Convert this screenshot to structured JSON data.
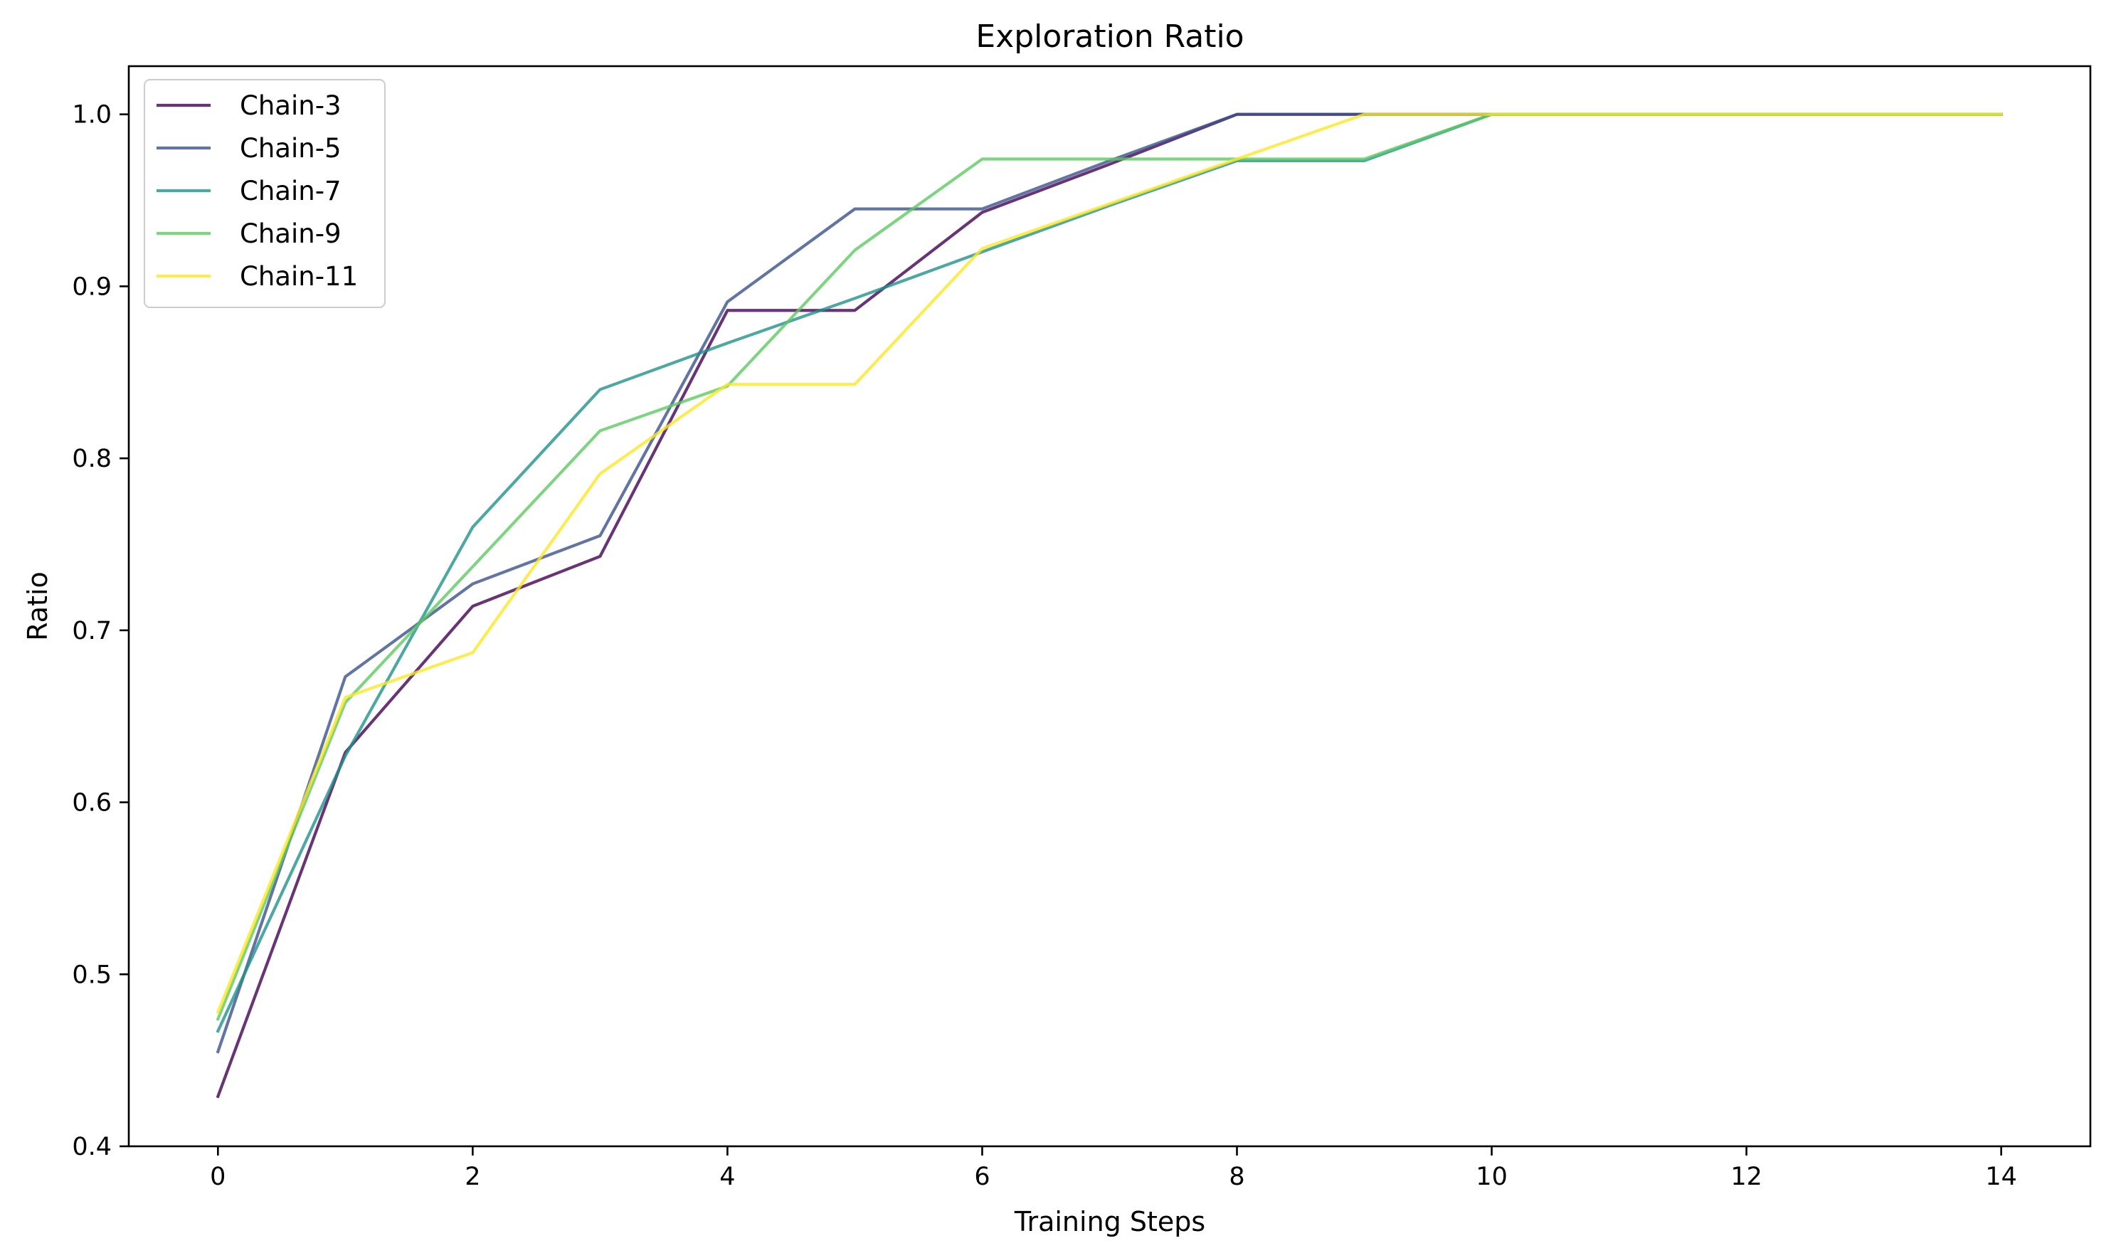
{
  "chart_data": {
    "type": "line",
    "title": "Exploration Ratio",
    "xlabel": "Training Steps",
    "ylabel": "Ratio",
    "xlim": [
      -0.7,
      14.7
    ],
    "ylim": [
      0.4,
      1.028
    ],
    "xticks": [
      0,
      2,
      4,
      6,
      8,
      10,
      12,
      14
    ],
    "xtick_labels": [
      "0",
      "2",
      "4",
      "6",
      "8",
      "10",
      "12",
      "14"
    ],
    "yticks": [
      0.4,
      0.5,
      0.6,
      0.7,
      0.8,
      0.9,
      1.0
    ],
    "ytick_labels": [
      "0.4",
      "0.5",
      "0.6",
      "0.7",
      "0.8",
      "0.9",
      "1.0"
    ],
    "grid": false,
    "legend_position": "top-left",
    "x": [
      0,
      1,
      2,
      3,
      4,
      5,
      6,
      7,
      8,
      9,
      10,
      11,
      12,
      13,
      14
    ],
    "series": [
      {
        "name": "Chain-3",
        "color": "#440154",
        "values": [
          0.429,
          0.629,
          0.714,
          0.743,
          0.886,
          0.886,
          0.943,
          0.971,
          1.0,
          1.0,
          1.0,
          1.0,
          1.0,
          1.0,
          1.0
        ]
      },
      {
        "name": "Chain-5",
        "color": "#3b528b",
        "values": [
          0.455,
          0.673,
          0.727,
          0.755,
          0.891,
          0.945,
          0.945,
          0.973,
          1.0,
          1.0,
          1.0,
          1.0,
          1.0,
          1.0,
          1.0
        ]
      },
      {
        "name": "Chain-7",
        "color": "#21918c",
        "values": [
          0.467,
          0.627,
          0.76,
          0.84,
          0.867,
          0.893,
          0.92,
          0.947,
          0.973,
          0.973,
          1.0,
          1.0,
          1.0,
          1.0,
          1.0
        ]
      },
      {
        "name": "Chain-9",
        "color": "#5ec962",
        "values": [
          0.474,
          0.658,
          0.737,
          0.816,
          0.842,
          0.921,
          0.974,
          0.974,
          0.974,
          0.974,
          1.0,
          1.0,
          1.0,
          1.0,
          1.0
        ]
      },
      {
        "name": "Chain-11",
        "color": "#fde725",
        "values": [
          0.478,
          0.661,
          0.687,
          0.791,
          0.843,
          0.843,
          0.922,
          0.948,
          0.974,
          1.0,
          1.0,
          1.0,
          1.0,
          1.0,
          1.0
        ]
      }
    ]
  }
}
